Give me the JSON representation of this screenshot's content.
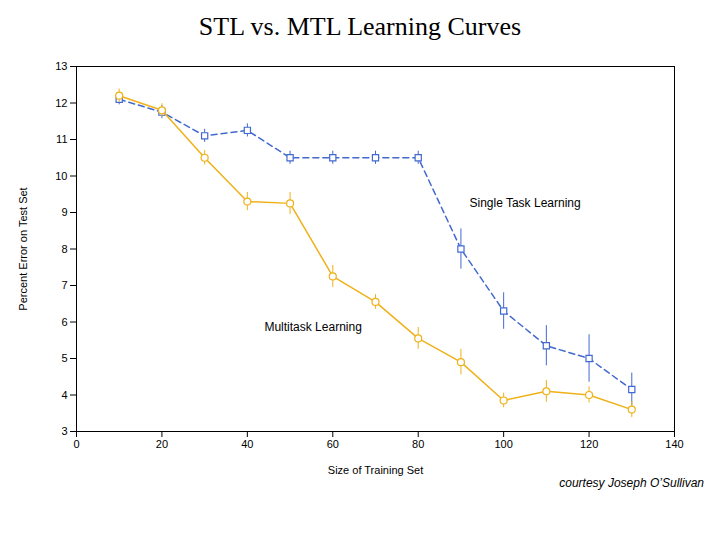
{
  "chart_data": {
    "type": "line",
    "title": "STL vs. MTL Learning Curves",
    "caption": "courtesy Joseph O’Sullivan",
    "xlabel": "Size of Training Set",
    "ylabel": "Percent Error on Test Set",
    "x": [
      10,
      20,
      30,
      40,
      50,
      60,
      70,
      80,
      90,
      100,
      110,
      120,
      130
    ],
    "series": [
      {
        "name": "Single Task Learning",
        "values": [
          12.1,
          11.75,
          11.1,
          11.25,
          10.5,
          10.5,
          10.5,
          10.5,
          8.0,
          6.3,
          5.35,
          5.0,
          4.15
        ],
        "yerr": [
          0.15,
          0.18,
          0.18,
          0.18,
          0.18,
          0.18,
          0.18,
          0.18,
          0.55,
          0.5,
          0.55,
          0.65,
          0.45
        ],
        "marker": "square",
        "line_style": "dashed"
      },
      {
        "name": "Multitask Learning",
        "values": [
          12.2,
          11.8,
          10.5,
          9.3,
          9.25,
          7.25,
          6.55,
          5.55,
          4.9,
          3.85,
          4.1,
          4.0,
          3.6
        ],
        "yerr": [
          0.18,
          0.18,
          0.2,
          0.25,
          0.3,
          0.3,
          0.2,
          0.3,
          0.35,
          0.2,
          0.3,
          0.22,
          0.22
        ],
        "marker": "circle",
        "line_style": "solid"
      }
    ],
    "annotations": [
      {
        "text": "Single Task Learning",
        "x": 92,
        "y": 9.25
      },
      {
        "text": "Multitask Learning",
        "x": 44,
        "y": 5.85
      }
    ],
    "xlim": [
      0,
      140
    ],
    "ylim": [
      3,
      13
    ],
    "xticks": [
      0,
      20,
      40,
      60,
      80,
      100,
      120,
      140
    ],
    "yticks": [
      3,
      4,
      5,
      6,
      7,
      8,
      9,
      10,
      11,
      12,
      13
    ],
    "grid": false
  }
}
